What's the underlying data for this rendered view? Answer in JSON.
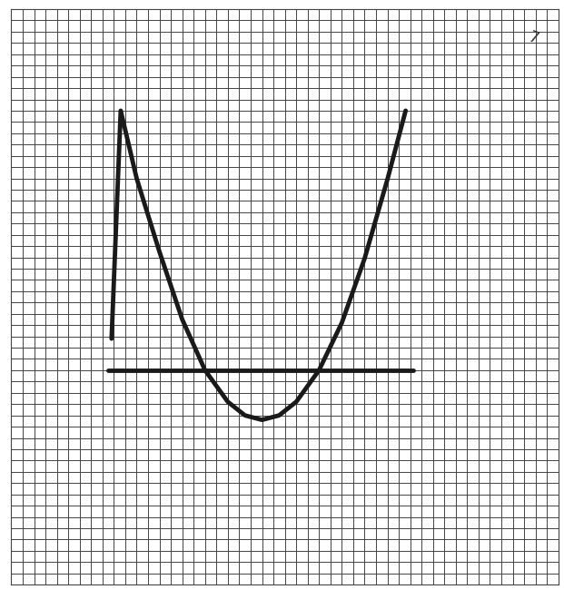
{
  "chart_data": {
    "type": "line",
    "annotation": "7",
    "series": [
      {
        "x": [
          -13.2,
          -12.4,
          -11,
          -9,
          -7,
          -5,
          -3,
          -1.5,
          0,
          1.5,
          3,
          5,
          7,
          9,
          11,
          12.6
        ],
        "values": [
          2.8,
          23,
          17,
          10.5,
          4.5,
          0,
          -2.8,
          -4,
          -4.4,
          -4,
          -2.8,
          0,
          4.2,
          9.9,
          16.9,
          23
        ],
        "color": "#1a1a1a",
        "line_style": "solid"
      },
      {
        "x": [
          -13.5,
          13.3
        ],
        "values": [
          0,
          0
        ],
        "color": "#1a1a1a",
        "line_style": "solid"
      }
    ],
    "xlim": [
      -22,
      26
    ],
    "xticks": [
      -22,
      -21,
      -20,
      -19,
      -18,
      -17,
      -16,
      -15,
      -14,
      -13,
      -12,
      -11,
      -10,
      -9,
      -8,
      -7,
      -6,
      -5,
      -4,
      -3,
      -2,
      -1,
      0,
      1,
      2,
      3,
      4,
      5,
      6,
      7,
      8,
      9,
      10,
      11,
      12,
      13,
      14,
      15,
      16,
      17,
      18,
      19,
      20,
      21,
      22,
      23,
      24,
      25,
      26
    ],
    "ylim": [
      -19,
      32
    ],
    "yticks": [
      -19,
      -18,
      -17,
      -16,
      -15,
      -14,
      -13,
      -12,
      -11,
      -10,
      -9,
      -8,
      -7,
      -6,
      -5,
      -4,
      -3,
      -2,
      -1,
      0,
      1,
      2,
      3,
      4,
      5,
      6,
      7,
      8,
      9,
      10,
      11,
      12,
      13,
      14,
      15,
      16,
      17,
      18,
      19,
      20,
      21,
      22,
      23,
      24,
      25,
      26,
      27,
      28,
      29,
      30,
      31,
      32
    ],
    "grid": true,
    "tick_labels": false
  }
}
